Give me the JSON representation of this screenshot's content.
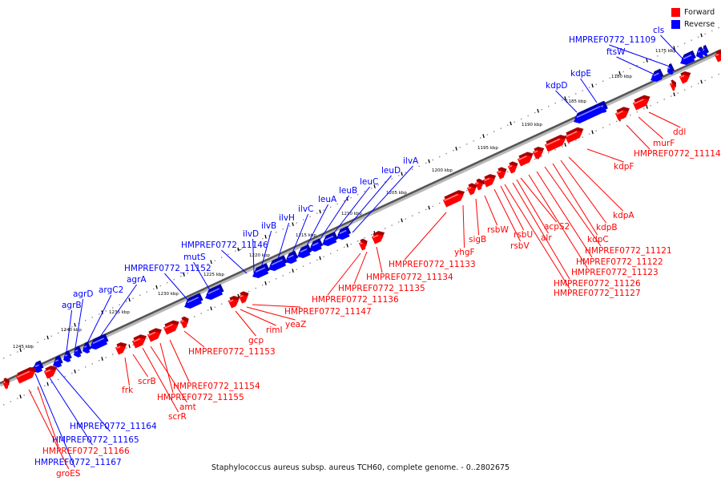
{
  "caption": "Staphylococcus aureus subsp. aureus TCH60, complete genome. - 0..2802675",
  "legend": {
    "forward": {
      "label": "Forward",
      "color": "#ff0000"
    },
    "reverse": {
      "label": "Reverse",
      "color": "#0000ff"
    }
  },
  "scale_labels": [
    "1175 kbp",
    "1180 kbp",
    "1185 kbp",
    "1190 kbp",
    "1195 kbp",
    "1200 kbp",
    "1205 kbp",
    "1210 kbp",
    "1215 kbp",
    "1220 kbp",
    "1225 kbp",
    "1230 kbp",
    "1235 kbp",
    "1240 kbp",
    "1245 kbp"
  ],
  "reverse_genes": [
    "cls",
    "HMPREF0772_11109",
    "ftsW",
    "kdpE",
    "kdpD",
    "ilvA",
    "leuD",
    "leuC",
    "leuB",
    "leuA",
    "ilvC",
    "ilvH",
    "ilvB",
    "ilvD",
    "HMPREF0772_11146",
    "mutS",
    "HMPREF0772_11152",
    "agrA",
    "argC2",
    "agrD",
    "agrB",
    "HMPREF0772_11164",
    "HMPREF0772_11165",
    "HMPREF0772_11167"
  ],
  "forward_genes": [
    "ddl",
    "murF",
    "HMPREF0772_11114",
    "kdpF",
    "kdpA",
    "kdpB",
    "kdpC",
    "HMPREF0772_11121",
    "HMPREF0772_11122",
    "HMPREF0772_11123",
    "HMPREF0772_11126",
    "HMPREF0772_11127",
    "acpS2",
    "alr",
    "rsbU",
    "rsbV",
    "rsbW",
    "sigB",
    "yhgF",
    "HMPREF0772_11133",
    "HMPREF0772_11134",
    "HMPREF0772_11135",
    "HMPREF0772_11136",
    "HMPREF0772_11147",
    "yeaZ",
    "rimI",
    "gcp",
    "HMPREF0772_11153",
    "HMPREF0772_11154",
    "HMPREF0772_11155",
    "amt",
    "scrR",
    "scrB",
    "frk",
    "HMPREF0772_11166",
    "groES"
  ]
}
